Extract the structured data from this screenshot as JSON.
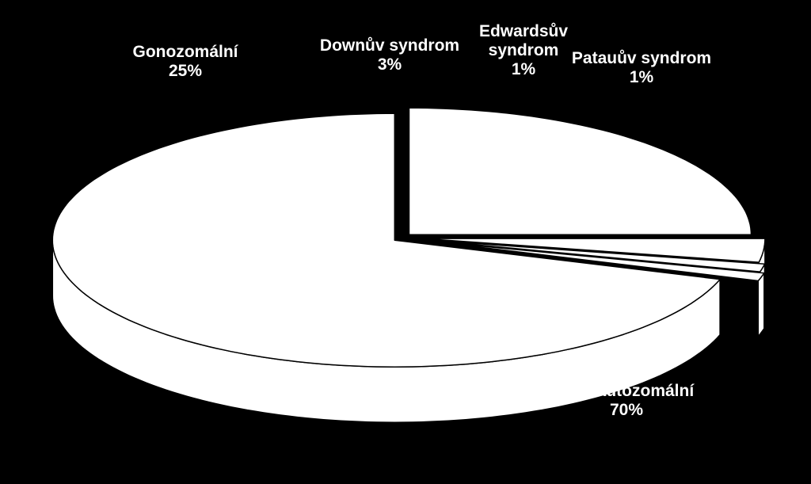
{
  "chart_data": {
    "type": "pie",
    "style": "3d-exploded",
    "categories": [
      "Gonozomální",
      "Downův syndrom",
      "Edwardsův syndrom",
      "Patauův syndrom",
      "Jiné autozomální"
    ],
    "values": [
      25,
      3,
      1,
      1,
      70
    ],
    "value_suffix": "%",
    "labels": [
      {
        "lines": [
          "Gonozomální"
        ],
        "pct": "25%"
      },
      {
        "lines": [
          "Downův syndrom"
        ],
        "pct": "3%"
      },
      {
        "lines": [
          "Edwardsův",
          "syndrom"
        ],
        "pct": "1%"
      },
      {
        "lines": [
          "Patauův syndrom"
        ],
        "pct": "1%"
      },
      {
        "lines": [
          "Jiné autozomální"
        ],
        "pct": "70%"
      }
    ],
    "colors": {
      "background": "#000000",
      "slice": "#ffffff",
      "edge": "#000000",
      "label": "#ffffff"
    },
    "title": "",
    "legend": "none"
  }
}
